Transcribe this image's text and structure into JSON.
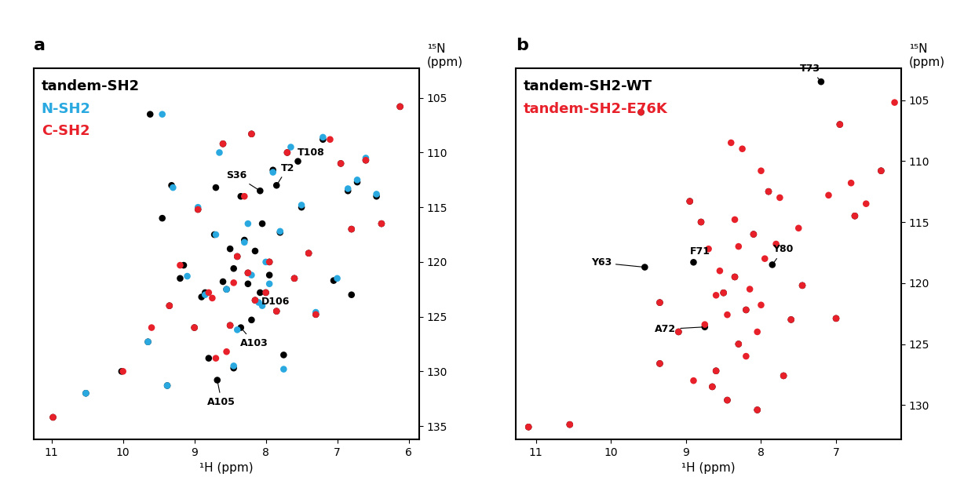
{
  "chart_data": [
    {
      "type": "scatter",
      "title": "a",
      "x_label": "¹H (ppm)",
      "y_label": "¹⁵N\n(ppm)",
      "xlim": [
        11.25,
        5.85
      ],
      "ylim": [
        136.2,
        102.3
      ],
      "xticks": [
        11,
        10,
        9,
        8,
        7,
        6
      ],
      "yticks": [
        105,
        110,
        115,
        120,
        125,
        130,
        135
      ],
      "marker": "o",
      "grid": false,
      "series": [
        {
          "name": "tandem-SH2",
          "color": "#000000",
          "x": [
            10.98,
            10.52,
            10.02,
            9.65,
            9.38,
            9.32,
            9.62,
            9.45,
            9.35,
            9.2,
            9.15,
            9.0,
            8.95,
            8.85,
            8.8,
            8.72,
            8.68,
            8.6,
            8.55,
            8.5,
            8.45,
            8.4,
            8.35,
            8.3,
            8.25,
            8.2,
            8.15,
            8.08,
            8.05,
            8.0,
            7.95,
            7.9,
            7.85,
            7.8,
            7.75,
            7.7,
            7.6,
            7.55,
            7.5,
            7.4,
            7.3,
            7.2,
            7.05,
            6.95,
            6.85,
            6.8,
            6.72,
            6.6,
            6.45,
            6.38,
            6.12,
            6.8,
            8.7,
            8.2,
            8.08,
            8.35,
            7.85,
            8.6,
            8.9,
            8.45,
            8.15,
            7.95,
            8.25,
            8.5
          ],
          "values": [
            134.2,
            132.0,
            130.0,
            127.3,
            131.3,
            113.0,
            106.5,
            116.0,
            124.0,
            121.5,
            120.3,
            126.0,
            115.2,
            122.8,
            128.8,
            117.5,
            130.8,
            109.2,
            122.5,
            125.8,
            129.7,
            119.5,
            114.0,
            118.0,
            121.0,
            108.3,
            123.5,
            113.5,
            116.5,
            122.8,
            120.0,
            111.6,
            124.5,
            117.3,
            128.5,
            110.0,
            121.5,
            110.8,
            115.0,
            119.2,
            124.8,
            108.8,
            121.7,
            111.0,
            113.5,
            117.0,
            112.7,
            110.7,
            114.0,
            116.5,
            105.8,
            123.0,
            113.2,
            125.3,
            122.8,
            126.0,
            113.0,
            121.8,
            123.2,
            120.6,
            119.0,
            121.2,
            122.0,
            118.8
          ]
        },
        {
          "name": "N-SH2",
          "color": "#29a9e0",
          "x": [
            10.52,
            9.65,
            9.38,
            9.45,
            9.3,
            9.1,
            8.95,
            8.85,
            8.7,
            8.55,
            8.45,
            8.3,
            8.2,
            8.1,
            8.0,
            7.9,
            7.8,
            7.65,
            7.5,
            7.3,
            7.2,
            7.0,
            6.85,
            6.72,
            6.6,
            6.45,
            8.4,
            8.25,
            8.05,
            7.75,
            8.65,
            7.95
          ],
          "values": [
            132.0,
            127.3,
            131.3,
            106.5,
            113.2,
            121.3,
            115.0,
            123.0,
            117.5,
            122.5,
            129.5,
            118.2,
            121.2,
            123.7,
            120.0,
            111.8,
            117.2,
            109.5,
            114.8,
            124.6,
            108.6,
            121.5,
            113.3,
            112.5,
            110.5,
            113.8,
            126.2,
            116.5,
            124.0,
            129.8,
            110.0,
            122.0
          ]
        },
        {
          "name": "C-SH2",
          "color": "#e8202a",
          "x": [
            10.98,
            10.0,
            9.6,
            9.35,
            9.2,
            9.0,
            8.95,
            8.8,
            8.7,
            8.6,
            8.5,
            8.4,
            8.3,
            8.2,
            8.15,
            8.0,
            7.95,
            7.85,
            7.7,
            7.6,
            7.4,
            7.3,
            7.1,
            6.95,
            6.8,
            6.6,
            6.38,
            6.12,
            8.55,
            8.25,
            8.75,
            8.45
          ],
          "values": [
            134.2,
            130.0,
            126.0,
            124.0,
            120.3,
            126.0,
            115.2,
            122.8,
            128.8,
            109.2,
            125.8,
            119.5,
            114.0,
            108.3,
            123.5,
            122.8,
            120.0,
            124.5,
            110.0,
            121.5,
            119.2,
            124.8,
            108.8,
            111.0,
            117.0,
            110.7,
            116.5,
            105.8,
            128.2,
            121.0,
            123.3,
            121.9
          ]
        }
      ],
      "annotations": [
        {
          "text": "T108",
          "x": 7.55,
          "y": 110.8
        },
        {
          "text": "S36",
          "x": 8.08,
          "y": 113.5
        },
        {
          "text": "T2",
          "x": 7.85,
          "y": 113.0
        },
        {
          "text": "D106",
          "x": 8.08,
          "y": 122.8
        },
        {
          "text": "A103",
          "x": 8.35,
          "y": 126.0
        },
        {
          "text": "A105",
          "x": 8.68,
          "y": 130.8
        }
      ]
    },
    {
      "type": "scatter",
      "title": "b",
      "x_label": "¹H (ppm)",
      "y_label": "¹⁵N\n(ppm)",
      "xlim": [
        11.27,
        6.13
      ],
      "ylim": [
        132.8,
        102.4
      ],
      "xticks": [
        11,
        10,
        9,
        8,
        7
      ],
      "yticks": [
        105,
        110,
        115,
        120,
        125,
        130
      ],
      "marker": "o",
      "grid": false,
      "series": [
        {
          "name": "tandem-SH2-WT",
          "color": "#000000",
          "x": [
            11.1,
            10.55,
            9.6,
            9.55,
            9.35,
            9.1,
            8.9,
            8.75,
            8.6,
            8.45,
            8.3,
            8.2,
            8.05,
            7.85,
            7.7,
            7.45,
            7.2,
            6.95,
            6.75,
            6.4,
            8.8,
            8.5,
            8.1,
            7.9,
            9.35,
            8.65,
            8.35,
            7.6,
            7.0,
            8.95
          ],
          "values": [
            131.8,
            131.6,
            106.0,
            118.7,
            121.6,
            124.0,
            118.3,
            123.6,
            127.2,
            129.6,
            125.0,
            122.2,
            130.4,
            118.5,
            127.6,
            120.2,
            103.5,
            107.0,
            114.5,
            110.8,
            115.0,
            120.8,
            116.0,
            112.5,
            126.6,
            128.5,
            119.5,
            123.0,
            122.9,
            113.3
          ]
        },
        {
          "name": "tandem-SH2-E76K",
          "color": "#e8202a",
          "x": [
            11.1,
            10.55,
            9.6,
            9.35,
            9.1,
            8.75,
            8.6,
            8.45,
            8.3,
            8.2,
            8.05,
            7.7,
            7.45,
            6.95,
            6.75,
            6.4,
            6.22,
            8.8,
            8.5,
            8.1,
            7.9,
            9.35,
            8.65,
            8.35,
            7.6,
            7.0,
            8.95,
            8.4,
            8.25,
            8.15,
            8.0,
            7.95,
            7.8,
            8.55,
            8.7,
            8.3,
            8.6,
            8.05,
            7.75,
            8.45,
            8.2,
            8.9,
            7.5,
            7.1,
            6.8,
            6.6,
            8.35,
            8.0
          ],
          "values": [
            131.8,
            131.6,
            106.0,
            121.6,
            124.0,
            123.4,
            127.2,
            129.6,
            125.0,
            122.2,
            130.4,
            127.6,
            120.2,
            107.0,
            114.5,
            110.8,
            105.2,
            115.0,
            120.8,
            116.0,
            112.5,
            126.6,
            128.5,
            119.5,
            123.0,
            122.9,
            113.3,
            108.5,
            109.0,
            120.5,
            121.8,
            118.0,
            116.8,
            119.0,
            117.2,
            117.0,
            121.0,
            124.0,
            113.0,
            122.6,
            126.0,
            128.0,
            115.5,
            112.8,
            111.8,
            113.5,
            114.8,
            110.8
          ]
        }
      ],
      "annotations": [
        {
          "text": "T73",
          "x": 7.2,
          "y": 103.5
        },
        {
          "text": "Y63",
          "x": 9.55,
          "y": 118.7
        },
        {
          "text": "F71",
          "x": 8.9,
          "y": 118.3
        },
        {
          "text": "Y80",
          "x": 7.85,
          "y": 118.5
        },
        {
          "text": "A72",
          "x": 8.75,
          "y": 123.6
        }
      ]
    }
  ]
}
